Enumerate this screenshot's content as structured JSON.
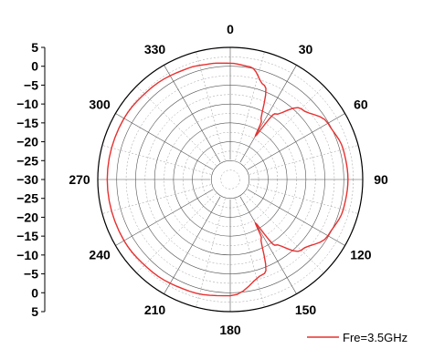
{
  "chart_data": {
    "type": "line",
    "subtype": "polar",
    "radial_axis": {
      "range": [
        -30,
        5
      ],
      "ticks": [
        5,
        0,
        -5,
        -10,
        -15,
        -20,
        -25,
        -30
      ]
    },
    "angular_axis": {
      "zero_direction": "top",
      "direction": "clockwise",
      "ticks": [
        0,
        30,
        60,
        90,
        120,
        150,
        180,
        210,
        240,
        270,
        300,
        330
      ]
    },
    "grid": true,
    "legend_position": "bottom-right",
    "series": [
      {
        "name": "Fre=3.5GHz",
        "color": "#e8302f",
        "theta": [
          0,
          10,
          20,
          28,
          30,
          34,
          45,
          60,
          75,
          90,
          105,
          120,
          135,
          146,
          150,
          152,
          160,
          180,
          200,
          220,
          240,
          270,
          300,
          320,
          340,
          350,
          360
        ],
        "r": [
          0.8,
          0.3,
          -3.5,
          -12.5,
          -16.7,
          -9,
          -3.5,
          -0.2,
          0.9,
          1.1,
          0.9,
          -0.2,
          -3.5,
          -9,
          -16.7,
          -12.5,
          -3.5,
          0.8,
          1.5,
          2.0,
          2.4,
          2.5,
          2.4,
          2.0,
          1.5,
          1.1,
          0.8
        ]
      }
    ]
  }
}
